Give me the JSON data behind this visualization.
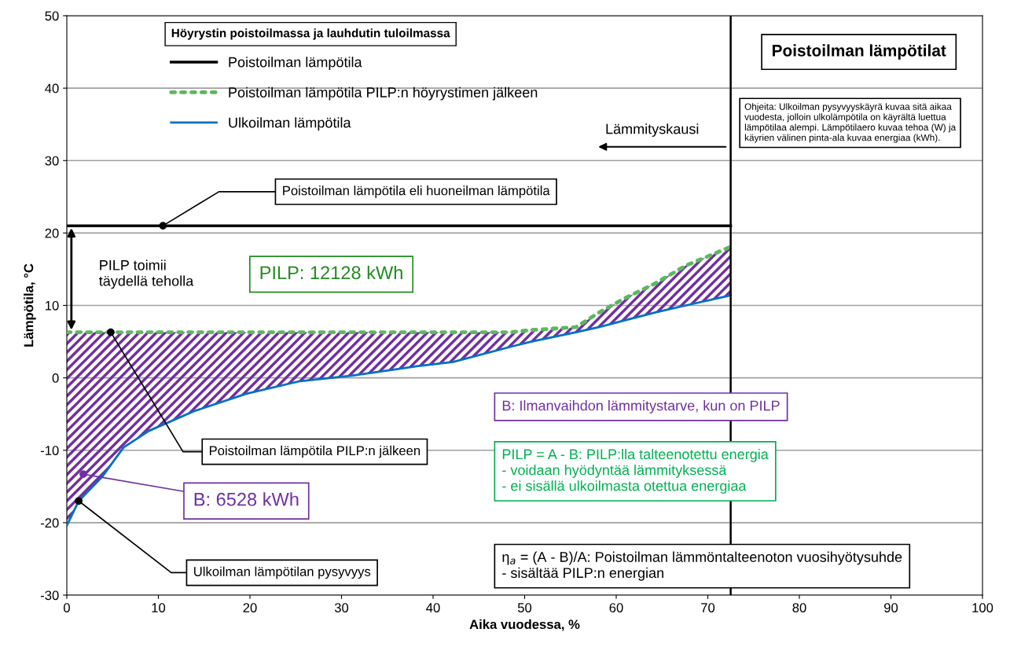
{
  "chart_data": {
    "type": "line",
    "title": "Poistoilman lämpötilat",
    "xlabel": "Aika vuodessa, %",
    "ylabel": "Lämpötila, °C",
    "legend_title": "Höyrystin poistoilmassa ja lauhdutin tuloilmassa",
    "xlim": [
      0,
      100
    ],
    "xticks": [
      0,
      10,
      20,
      30,
      40,
      50,
      60,
      70,
      80,
      90,
      100
    ],
    "ylim": [
      -30,
      50
    ],
    "yticks": [
      -30,
      -20,
      -10,
      0,
      10,
      20,
      30,
      40,
      50
    ],
    "grid": "y",
    "legend": "top left",
    "series": [
      {
        "name": "Poistoilman lämpötila",
        "color": "#000000",
        "line_style": "solid",
        "x": [
          0,
          72.5
        ],
        "values": [
          21,
          21
        ]
      },
      {
        "name": "Poistoilman lämpötila PILP:n höyrystimen jälkeen",
        "color": "#5cb85c",
        "line_style": "dotted",
        "x": [
          0,
          1.3,
          3.9,
          6.2,
          9,
          13.9,
          19.6,
          25.3,
          31.1,
          38.2,
          42.2,
          48.5,
          50.7,
          55.6,
          58.1,
          60.8,
          64.2,
          67.6,
          72.5
        ],
        "values": [
          6.3,
          6.3,
          6.3,
          6.3,
          6.3,
          6.3,
          6.3,
          6.3,
          6.3,
          6.3,
          6.3,
          6.3,
          6.6,
          7.0,
          9.0,
          10.9,
          13.0,
          15.5,
          18.1
        ],
        "lower": [
          -20.4,
          -17.0,
          -13.6,
          -9.6,
          -7.3,
          -4.6,
          -2.2,
          -0.5,
          0.3,
          1.6,
          2.2,
          4.3,
          5.0,
          6.3,
          7.0,
          7.9,
          9.0,
          10.0,
          11.4
        ],
        "upper": [
          6.3,
          6.3,
          6.3,
          6.3,
          6.3,
          6.3,
          6.3,
          6.3,
          6.3,
          6.3,
          6.3,
          6.3,
          6.6,
          7.0,
          9.0,
          10.9,
          13.0,
          15.5,
          18.1
        ]
      },
      {
        "name": "Ulkoilman lämpötila",
        "color": "#0070c0",
        "line_style": "solid",
        "x": [
          0,
          1.3,
          3.9,
          6.2,
          9,
          13.9,
          19.6,
          25.3,
          31.1,
          38.2,
          42.2,
          48.5,
          50.7,
          55.6,
          58.1,
          60.8,
          64.2,
          67.6,
          72.5
        ],
        "values": [
          -20.4,
          -17.0,
          -13.6,
          -9.6,
          -7.3,
          -4.6,
          -2.2,
          -0.5,
          0.3,
          1.6,
          2.2,
          4.3,
          5.0,
          6.3,
          7.0,
          7.9,
          9.0,
          10.0,
          11.4
        ]
      }
    ],
    "ref_lines": [
      {
        "axis": "x",
        "value": 72.5,
        "color": "#000000"
      }
    ],
    "annotations": [
      {
        "text": "Poistoilman lämpötila eli huoneilman lämpötila",
        "x": 10.5,
        "y": 21
      },
      {
        "text": "Poistoilman lämpötila PILP:n jälkeen",
        "x": 4.8,
        "y": 6.3
      },
      {
        "text": "B: 6528 kWh",
        "x": 1.8,
        "y": -13.3
      },
      {
        "text": "Ulkoilman lämpötilan pysyvyys",
        "x": 1.3,
        "y": -17
      },
      "PILP toimii\ntäydellä teholla",
      "PILP: 12128 kWh",
      "Lämmityskausi",
      "Ohjeita: Ulkoilman pysyvyyskäyrä kuvaa sitä aikaa\nvuodesta, jolloin ulkolämpötila on käyrältä luettua\nlämpötilaa alempi. Lämpötilaero kuvaa tehoa (W) ja\nkäyrien välinen pinta-ala kuvaa energiaa (kWh).",
      "B: Ilmanvaihdon lämmitystarve, kun on PILP",
      "PILP = A - B: PILP:lla talteenotettu energia\n- voidaan hyödyntää lämmityksessä\n- ei sisällä ulkoilmasta otettua energiaa",
      "η$_{a}$ = (A - B)/A: Poistoilman lämmöntalteenoton vuosihyötysuhde\n- sisältää PILP:n energian"
    ]
  }
}
